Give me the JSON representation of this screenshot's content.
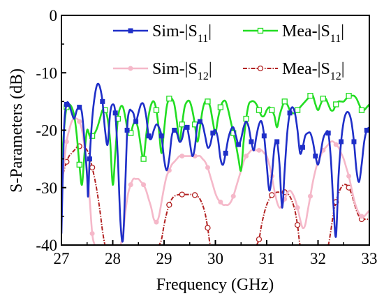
{
  "chart_data": {
    "type": "line",
    "xlabel": "Frequency (GHz)",
    "ylabel": "S-Parameters (dB)",
    "xlim": [
      27,
      33
    ],
    "ylim": [
      -40,
      0
    ],
    "xticks": [
      "27",
      "28",
      "29",
      "30",
      "31",
      "32",
      "33"
    ],
    "yticks": [
      "0",
      "-10",
      "-20",
      "-30",
      "-40"
    ],
    "grid": false,
    "legend_position": "top",
    "series": [
      {
        "name": "Sim-|S11|",
        "legend_main": "Sim-|S",
        "legend_sub": "11",
        "legend_tail": "|",
        "color": "#1f2fc8",
        "marker": "filled-square",
        "x": [
          27.0,
          27.05,
          27.1,
          27.15,
          27.2,
          27.25,
          27.3,
          27.35,
          27.4,
          27.45,
          27.5,
          27.52,
          27.55,
          27.6,
          27.65,
          27.7,
          27.75,
          27.8,
          27.85,
          27.9,
          27.95,
          28.0,
          28.05,
          28.1,
          28.15,
          28.2,
          28.25,
          28.28,
          28.3,
          28.33,
          28.35,
          28.4,
          28.45,
          28.5,
          28.55,
          28.6,
          28.65,
          28.7,
          28.75,
          28.8,
          28.85,
          28.9,
          28.95,
          29.0,
          29.05,
          29.1,
          29.15,
          29.2,
          29.25,
          29.3,
          29.35,
          29.4,
          29.45,
          29.5,
          29.55,
          29.6,
          29.65,
          29.7,
          29.75,
          29.8,
          29.85,
          29.9,
          29.95,
          30.0,
          30.05,
          30.1,
          30.15,
          30.2,
          30.25,
          30.3,
          30.35,
          30.4,
          30.45,
          30.5,
          30.55,
          30.6,
          30.65,
          30.7,
          30.75,
          30.8,
          30.85,
          30.9,
          30.95,
          31.0,
          31.05,
          31.1,
          31.15,
          31.2,
          31.25,
          31.3,
          31.35,
          31.4,
          31.45,
          31.5,
          31.55,
          31.6,
          31.65,
          31.7,
          31.75,
          31.8,
          31.85,
          31.9,
          31.95,
          32.0,
          32.05,
          32.1,
          32.15,
          32.2,
          32.25,
          32.3,
          32.35,
          32.4,
          32.45,
          32.5,
          32.55,
          32.6,
          32.65,
          32.7,
          32.75,
          32.8,
          32.85,
          32.9,
          32.95,
          33.0
        ],
        "values": [
          -38,
          -20,
          -15.5,
          -15.5,
          -17,
          -18,
          -16.5,
          -16,
          -17,
          -22,
          -28,
          -31.5,
          -25,
          -18,
          -14,
          -12,
          -12.5,
          -15,
          -20,
          -22.5,
          -17,
          -15.5,
          -17,
          -25,
          -36,
          -39,
          -28,
          -20,
          -17.5,
          -16.5,
          -16.5,
          -17,
          -18.5,
          -17,
          -15.5,
          -15.5,
          -17.5,
          -21,
          -21.5,
          -20,
          -19,
          -19.5,
          -21,
          -25,
          -27,
          -25,
          -21,
          -20,
          -20.5,
          -22,
          -21.5,
          -19.5,
          -19.5,
          -22,
          -24.5,
          -23,
          -19,
          -18.5,
          -19,
          -21,
          -23,
          -22.5,
          -20.5,
          -20,
          -21.5,
          -25,
          -26,
          -24,
          -21.5,
          -20,
          -19.5,
          -21,
          -22.5,
          -21.5,
          -19.5,
          -18.5,
          -19.5,
          -22,
          -23.5,
          -21,
          -19,
          -18.5,
          -21,
          -26,
          -30.5,
          -28,
          -23,
          -22,
          -26,
          -33.5,
          -27,
          -20.5,
          -17,
          -16,
          -17,
          -20,
          -24,
          -23,
          -21,
          -20.5,
          -20.5,
          -22,
          -24.5,
          -26,
          -24,
          -21.5,
          -20.5,
          -20.5,
          -25,
          -33,
          -38.5,
          -28,
          -22,
          -18.5,
          -17,
          -17,
          -18.5,
          -22,
          -27,
          -29,
          -26,
          -22,
          -20,
          -19.5
        ]
      },
      {
        "name": "Mea-|S11|",
        "legend_main": "Mea-|S",
        "legend_sub": "11",
        "legend_tail": "|",
        "color": "#22dd22",
        "marker": "open-square",
        "x": [
          27.0,
          27.05,
          27.1,
          27.15,
          27.2,
          27.25,
          27.3,
          27.35,
          27.4,
          27.45,
          27.5,
          27.55,
          27.6,
          27.65,
          27.7,
          27.75,
          27.8,
          27.85,
          27.9,
          27.95,
          28.0,
          28.05,
          28.1,
          28.15,
          28.2,
          28.25,
          28.3,
          28.35,
          28.4,
          28.45,
          28.5,
          28.55,
          28.6,
          28.65,
          28.7,
          28.75,
          28.8,
          28.85,
          28.9,
          28.95,
          29.0,
          29.05,
          29.1,
          29.15,
          29.2,
          29.25,
          29.3,
          29.35,
          29.4,
          29.45,
          29.5,
          29.55,
          29.6,
          29.65,
          29.7,
          29.75,
          29.8,
          29.85,
          29.9,
          29.95,
          30.0,
          30.05,
          30.1,
          30.15,
          30.2,
          30.25,
          30.3,
          30.35,
          30.4,
          30.45,
          30.5,
          30.55,
          30.6,
          30.65,
          30.7,
          30.75,
          30.8,
          30.85,
          30.9,
          30.95,
          31.0,
          31.05,
          31.1,
          31.15,
          31.2,
          31.25,
          31.3,
          31.35,
          31.4,
          31.45,
          31.5,
          31.55,
          31.6,
          31.65,
          31.7,
          31.75,
          31.8,
          31.85,
          31.9,
          31.95,
          32.0,
          32.05,
          32.1,
          32.15,
          32.2,
          32.25,
          32.3,
          32.35,
          32.4,
          32.45,
          32.5,
          32.55,
          32.6,
          32.65,
          32.7,
          32.75,
          32.8,
          32.85,
          32.9,
          32.95,
          33.0
        ],
        "values": [
          -27,
          -20,
          -16,
          -15.5,
          -16,
          -17.5,
          -21,
          -26,
          -29.5,
          -24,
          -20,
          -21,
          -21,
          -20.5,
          -19.5,
          -18,
          -16.5,
          -16.5,
          -18,
          -22,
          -29.5,
          -24,
          -18,
          -16,
          -16,
          -18,
          -20.5,
          -20.5,
          -19,
          -18.5,
          -20,
          -23,
          -25,
          -21,
          -17.5,
          -15.5,
          -15,
          -16.5,
          -20,
          -24,
          -20,
          -16,
          -14.5,
          -14.5,
          -15.5,
          -18.5,
          -22,
          -19,
          -16,
          -15,
          -15,
          -16.5,
          -19,
          -22,
          -19.5,
          -16.5,
          -15,
          -15,
          -16,
          -18.5,
          -20.5,
          -18,
          -16,
          -15,
          -15,
          -16.5,
          -18.5,
          -20.5,
          -22.5,
          -25,
          -27,
          -22,
          -18,
          -15.5,
          -15,
          -15,
          -15.5,
          -16.5,
          -17.5,
          -17.5,
          -16.5,
          -16,
          -16.5,
          -17.5,
          -19.5,
          -17.5,
          -16,
          -15,
          -15.5,
          -16.5,
          -17,
          -17,
          -16.5,
          -16,
          -15.5,
          -15,
          -14.5,
          -14,
          -14,
          -15.5,
          -16.5,
          -15.5,
          -14.5,
          -14.5,
          -15.5,
          -16.5,
          -16.5,
          -15.5,
          -15,
          -15,
          -15,
          -14.5,
          -14,
          -14,
          -14,
          -14.5,
          -15.5,
          -16.5,
          -16.5,
          -16,
          -15.5
        ]
      },
      {
        "name": "Sim-|S12|",
        "legend_main": "Sim-|S",
        "legend_sub": "12",
        "legend_tail": "|",
        "color": "#f5b8c9",
        "marker": "filled-circle",
        "x": [
          27.0,
          27.05,
          27.1,
          27.15,
          27.2,
          27.25,
          27.3,
          27.35,
          27.4,
          27.45,
          27.5,
          27.55,
          27.6,
          27.65,
          27.7,
          27.75,
          27.8,
          27.85,
          27.9,
          27.95,
          28.0,
          28.05,
          28.1,
          28.15,
          28.2,
          28.25,
          28.3,
          28.35,
          28.4,
          28.45,
          28.5,
          28.55,
          28.6,
          28.65,
          28.7,
          28.75,
          28.8,
          28.85,
          28.9,
          28.95,
          29.0,
          29.05,
          29.1,
          29.15,
          29.2,
          29.25,
          29.3,
          29.35,
          29.4,
          29.45,
          29.5,
          29.55,
          29.6,
          29.65,
          29.7,
          29.75,
          29.8,
          29.85,
          29.9,
          29.95,
          30.0,
          30.05,
          30.1,
          30.15,
          30.2,
          30.25,
          30.3,
          30.35,
          30.4,
          30.45,
          30.5,
          30.55,
          30.6,
          30.65,
          30.7,
          30.75,
          30.8,
          30.85,
          30.9,
          30.95,
          31.0,
          31.05,
          31.1,
          31.15,
          31.2,
          31.25,
          31.3,
          31.35,
          31.4,
          31.45,
          31.5,
          31.55,
          31.6,
          31.65,
          31.7,
          31.75,
          31.8,
          31.85,
          31.9,
          31.95,
          32.0,
          32.05,
          32.1,
          32.15,
          32.2,
          32.25,
          32.3,
          32.35,
          32.4,
          32.45,
          32.5,
          32.55,
          32.6,
          32.65,
          32.7,
          32.75,
          32.8,
          32.85,
          32.9,
          32.95,
          33.0
        ],
        "values": [
          -31,
          -26,
          -22,
          -20,
          -18.5,
          -18,
          -18,
          -18.5,
          -20,
          -23,
          -27,
          -32,
          -38,
          -40,
          -40,
          -40,
          -40,
          -40,
          -40,
          -40,
          -40,
          -40,
          -40,
          -40,
          -38,
          -34,
          -31,
          -29.5,
          -28.5,
          -28.5,
          -28.5,
          -29,
          -29.5,
          -30.5,
          -32,
          -33.5,
          -35.5,
          -36,
          -35,
          -32.5,
          -30,
          -28,
          -27,
          -26,
          -25.5,
          -25,
          -24.5,
          -24.5,
          -24.5,
          -24.5,
          -24.5,
          -24.5,
          -24.5,
          -24.5,
          -24.5,
          -25,
          -25.5,
          -26.5,
          -28,
          -29.5,
          -31,
          -32,
          -32.5,
          -33,
          -33,
          -33,
          -32.5,
          -31.5,
          -30,
          -28.5,
          -27,
          -25.5,
          -24.5,
          -24,
          -23.5,
          -23.5,
          -23.5,
          -23.5,
          -23.5,
          -24,
          -24.5,
          -26,
          -28,
          -30.5,
          -32.5,
          -33.5,
          -33,
          -32,
          -31,
          -30.5,
          -31,
          -32,
          -33.5,
          -35.5,
          -37,
          -36.5,
          -34,
          -31.5,
          -29,
          -27,
          -25.5,
          -24.5,
          -23.5,
          -23,
          -22.5,
          -22,
          -22,
          -22.5,
          -23,
          -24,
          -25,
          -26.5,
          -28,
          -30,
          -32,
          -33.5,
          -34.5,
          -35,
          -35,
          -34.5,
          -34
        ]
      },
      {
        "name": "Mea-|S12|",
        "legend_main": "Mea-|S",
        "legend_sub": "12",
        "legend_tail": "|",
        "color": "#b22222",
        "marker": "open-circle",
        "dashed": true,
        "x": [
          27.0,
          27.05,
          27.1,
          27.15,
          27.2,
          27.25,
          27.3,
          27.35,
          27.4,
          27.45,
          27.5,
          27.55,
          27.6,
          27.65,
          27.7,
          27.75,
          27.8,
          27.85,
          27.9,
          27.95,
          28.0,
          28.05,
          28.1,
          28.15,
          28.2,
          28.25,
          28.3,
          28.35,
          28.4,
          28.45,
          28.5,
          28.55,
          28.6,
          28.65,
          28.7,
          28.75,
          28.8,
          28.85,
          28.9,
          28.95,
          29.0,
          29.05,
          29.1,
          29.15,
          29.2,
          29.25,
          29.3,
          29.35,
          29.4,
          29.45,
          29.5,
          29.55,
          29.6,
          29.65,
          29.7,
          29.75,
          29.8,
          29.85,
          29.9,
          29.95,
          30.0,
          30.05,
          30.1,
          30.15,
          30.2,
          30.25,
          30.3,
          30.35,
          30.4,
          30.45,
          30.5,
          30.55,
          30.6,
          30.65,
          30.7,
          30.75,
          30.8,
          30.85,
          30.9,
          30.95,
          31.0,
          31.05,
          31.1,
          31.15,
          31.2,
          31.25,
          31.3,
          31.35,
          31.4,
          31.45,
          31.5,
          31.55,
          31.6,
          31.65,
          31.7,
          31.75,
          31.8,
          31.85,
          31.9,
          31.95,
          32.0,
          32.05,
          32.1,
          32.15,
          32.2,
          32.25,
          32.3,
          32.35,
          32.4,
          32.45,
          32.5,
          32.55,
          32.6,
          32.65,
          32.7,
          32.75,
          32.8,
          32.85,
          32.9,
          32.95,
          33.0
        ],
        "values": [
          -29,
          -27,
          -25.5,
          -24.5,
          -24,
          -23.5,
          -23,
          -22.8,
          -22.8,
          -23,
          -23.5,
          -24.5,
          -26.5,
          -28.5,
          -31,
          -34,
          -37.5,
          -40,
          -40,
          -40,
          -40,
          -40,
          -40,
          -40,
          -40,
          -40,
          -40,
          -40,
          -40,
          -40,
          -40,
          -40,
          -40,
          -40,
          -40,
          -40,
          -40,
          -40,
          -40,
          -39,
          -36.5,
          -34.5,
          -33,
          -32,
          -31.5,
          -31.3,
          -31.2,
          -31.2,
          -31.2,
          -31.2,
          -31.2,
          -31.2,
          -31.3,
          -31.5,
          -32,
          -33,
          -34.5,
          -37,
          -40,
          -40,
          -40,
          -40,
          -40,
          -40,
          -40,
          -40,
          -40,
          -40,
          -40,
          -40,
          -40,
          -40,
          -40,
          -40,
          -40,
          -40,
          -40,
          -39,
          -36.5,
          -34.5,
          -33,
          -32,
          -31.3,
          -31,
          -30.8,
          -30.8,
          -30.8,
          -30.8,
          -31,
          -31.5,
          -32.5,
          -34,
          -36.5,
          -40,
          -40,
          -40,
          -40,
          -40,
          -40,
          -40,
          -40,
          -40,
          -40,
          -40,
          -40,
          -37.5,
          -34.5,
          -32.5,
          -31,
          -30,
          -29.5,
          -29.5,
          -30,
          -31,
          -32.5,
          -34,
          -35,
          -35.5,
          -35.5,
          -35.5,
          -35.5
        ]
      }
    ]
  }
}
